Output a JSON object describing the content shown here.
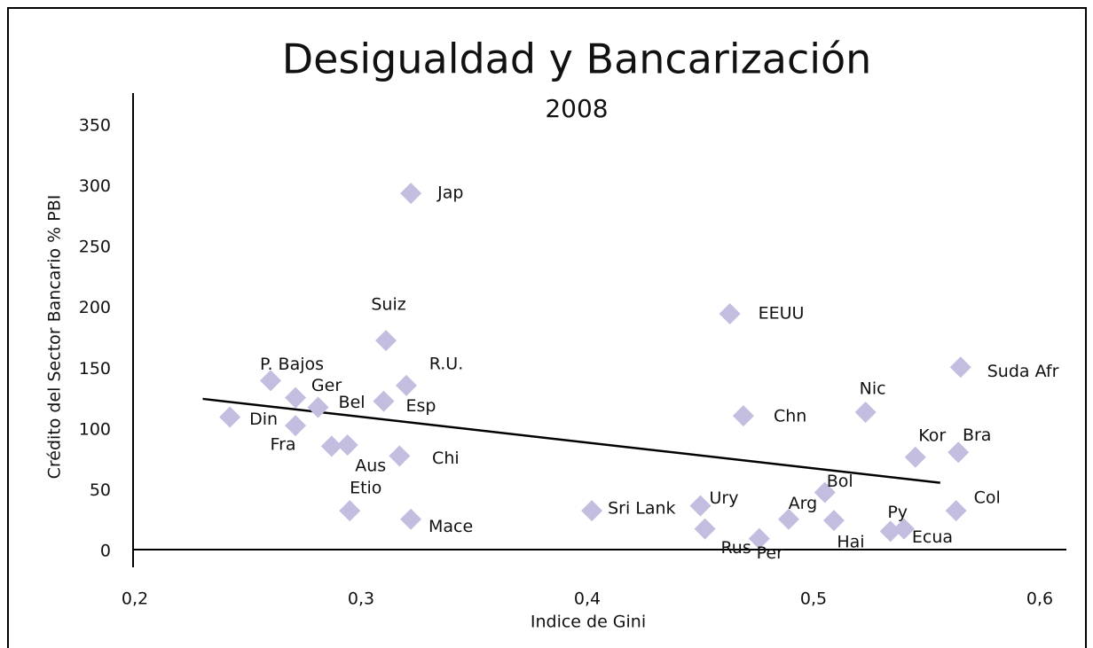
{
  "chart_data": {
    "type": "scatter",
    "title": "Desigualdad y Bancarización",
    "subtitle": "2008",
    "x_label": "Indice de Gini",
    "y_label": "Crédito del Sector Bancario % PBI",
    "color": "#c3bde0",
    "xlim": [
      0.2,
      0.6
    ],
    "ylim": [
      0,
      350
    ],
    "xticks": [
      {
        "value": 0.2,
        "label": "0,2"
      },
      {
        "value": 0.3,
        "label": "0,3"
      },
      {
        "value": 0.4,
        "label": "0,4"
      },
      {
        "value": 0.5,
        "label": "0,5"
      },
      {
        "value": 0.6,
        "label": "0,6"
      }
    ],
    "yticks": [
      0,
      50,
      100,
      150,
      200,
      250,
      300,
      350
    ],
    "labels": [
      "Jap",
      "Suiz",
      "R.U.",
      "Esp",
      "P. Bajos",
      "Ger",
      "Bel",
      "Din",
      "Fra",
      null,
      "Aus",
      "Chi",
      "Etio",
      "Mace",
      "Sri Lank",
      "Ury",
      "Rus",
      "Per",
      "Arg",
      "Bol",
      "Hai",
      "Py",
      "Ecua",
      "Col",
      "Kor",
      "Bra",
      "Nic",
      "Chn",
      "EEUU",
      "Suda Afr"
    ],
    "x": [
      0.322,
      0.311,
      0.32,
      0.31,
      0.26,
      0.271,
      0.281,
      0.242,
      0.271,
      0.287,
      0.294,
      0.317,
      0.295,
      0.322,
      0.402,
      0.45,
      0.452,
      0.476,
      0.489,
      0.505,
      0.509,
      0.534,
      0.54,
      0.563,
      0.545,
      0.564,
      0.523,
      0.469,
      0.463,
      0.565
    ],
    "y": [
      293,
      172,
      135,
      122,
      139,
      125,
      117,
      109,
      102,
      85,
      86,
      77,
      32,
      25,
      32,
      36,
      17,
      9,
      25,
      47,
      24,
      15,
      17,
      32,
      76,
      80,
      113,
      110,
      194,
      150
    ],
    "trendline": {
      "x": [
        0.23,
        0.556
      ],
      "y": [
        124,
        55
      ]
    }
  }
}
